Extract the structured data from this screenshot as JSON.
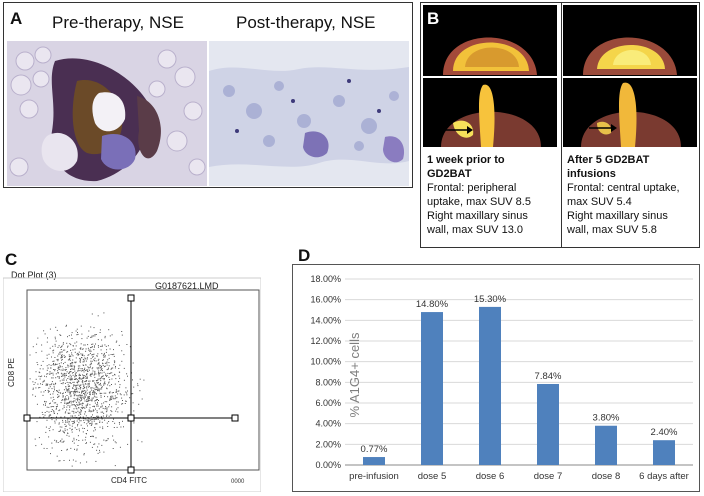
{
  "panelA": {
    "label": "A",
    "left_caption": "Pre-therapy, NSE",
    "right_caption": "Post-therapy, NSE"
  },
  "panelB": {
    "label": "B",
    "left": {
      "title_line1": "1 week prior to",
      "title_line2": "GD2BAT",
      "lines": [
        "Frontal: peripheral",
        "uptake, max SUV 8.5",
        "Right maxillary sinus",
        "wall, max SUV 13.0"
      ]
    },
    "right": {
      "title_line1": "After 5 GD2BAT",
      "title_line2": "infusions",
      "lines": [
        "Frontal: central uptake,",
        "max SUV 5.4",
        "Right maxillary sinus",
        "wall, max SUV 5.8"
      ]
    }
  },
  "panelC": {
    "label": "C",
    "plot_title": "Dot Plot (3)",
    "file_id": "G0187621.LMD",
    "xlabel": "CD4 FITC",
    "ylabel": "CD8 PE"
  },
  "panelD": {
    "label": "D"
  },
  "chart_data": {
    "type": "bar",
    "ylabel": "% A1G4+ cells",
    "categories": [
      "pre-infusion",
      "dose 5",
      "dose 6",
      "dose 7",
      "dose 8",
      "6 days after"
    ],
    "values": [
      0.77,
      14.8,
      15.3,
      7.84,
      3.8,
      2.4
    ],
    "data_labels": [
      "0.77%",
      "14.80%",
      "15.30%",
      "7.84%",
      "3.80%",
      "2.40%"
    ],
    "yticks": [
      "0.00%",
      "2.00%",
      "4.00%",
      "6.00%",
      "8.00%",
      "10.00%",
      "12.00%",
      "14.00%",
      "16.00%",
      "18.00%"
    ],
    "ylim": [
      0,
      18
    ],
    "bar_color": "#4f81bd",
    "grid": true
  }
}
